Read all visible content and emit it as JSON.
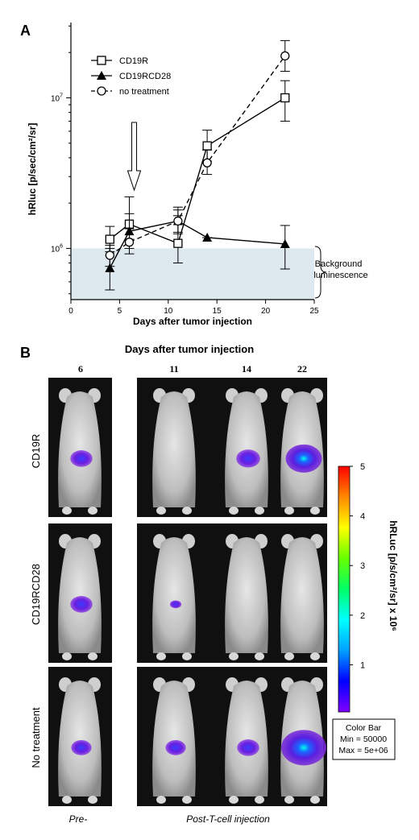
{
  "panel_a": {
    "label": "A",
    "ylabel": "hRluc [p/sec/cm²/sr]",
    "background_label_line1": "Background",
    "background_label_line2": "luminescence"
  },
  "chart_data": {
    "type": "line",
    "title": "",
    "xlabel": "Days after tumor injection",
    "ylabel": "hRluc [p/sec/cm²/sr]",
    "xlim": [
      0,
      25
    ],
    "ylim_log10": [
      5.66,
      7.5
    ],
    "yscale": "log",
    "x_ticks": [
      0,
      5,
      10,
      15,
      20,
      25
    ],
    "x_tick_labels": [
      "0",
      "5",
      "10",
      "15",
      "20",
      "25"
    ],
    "y_tick_labels": [
      {
        "value": 1000000,
        "base": "10",
        "exp": "6"
      },
      {
        "value": 10000000,
        "base": "10",
        "exp": "7"
      }
    ],
    "legend_position": "top-left",
    "background_threshold": 1000000,
    "arrow_day": 6.5,
    "series": [
      {
        "name": "CD19R",
        "marker": "square",
        "dash": "solid",
        "x": [
          4,
          6,
          11,
          14,
          22
        ],
        "y": [
          1150000,
          1450000,
          1080000,
          4800000,
          10000000
        ],
        "err_low": [
          950000,
          1150000,
          800000,
          3800000,
          7000000
        ],
        "err_high": [
          1400000,
          1700000,
          1650000,
          6100000,
          13000000
        ]
      },
      {
        "name": "CD19RCD28",
        "marker": "triangle",
        "dash": "solid",
        "x": [
          4,
          6,
          11,
          14,
          22
        ],
        "y": [
          740000,
          1300000,
          1520000,
          1180000,
          1070000
        ],
        "err_low": [
          530000,
          1000000,
          1250000,
          1180000,
          730000
        ],
        "err_high": [
          1000000,
          2200000,
          1800000,
          1180000,
          1420000
        ]
      },
      {
        "name": "no treatment",
        "marker": "circle",
        "dash": "dashed",
        "x": [
          4,
          6,
          11,
          14,
          22
        ],
        "y": [
          900000,
          1100000,
          1520000,
          3700000,
          19000000
        ],
        "err_low": [
          760000,
          920000,
          1280000,
          3100000,
          15000000
        ],
        "err_high": [
          1050000,
          1350000,
          1880000,
          4500000,
          24000000
        ]
      }
    ]
  },
  "panel_b": {
    "label": "B",
    "title": "Days after tumor injection",
    "day_labels": [
      "6",
      "11",
      "14",
      "22"
    ],
    "rows": [
      {
        "label": "CD19R"
      },
      {
        "label": "CD19RCD28"
      },
      {
        "label": "No treatment"
      }
    ],
    "signal_intensity": [
      [
        0.35,
        0.0,
        0.4,
        0.75
      ],
      [
        0.35,
        0.05,
        0.0,
        0.0
      ],
      [
        0.3,
        0.3,
        0.35,
        1.0
      ]
    ],
    "footer_pre": "Pre-",
    "footer_post": "Post-T-cell injection",
    "colorbar": {
      "title": "hRLuc [p/s/cm²/sr] x 10⁶",
      "ticks": [
        "1",
        "2",
        "3",
        "4",
        "5"
      ],
      "box_line1": "Color Bar",
      "box_line2": "Min = 50000",
      "box_line3": "Max = 5e+06",
      "stops": [
        "#7f00ff",
        "#0000ff",
        "#00a0ff",
        "#00ffff",
        "#00ff66",
        "#66ff00",
        "#ffff00",
        "#ff8800",
        "#ff0000"
      ]
    }
  }
}
